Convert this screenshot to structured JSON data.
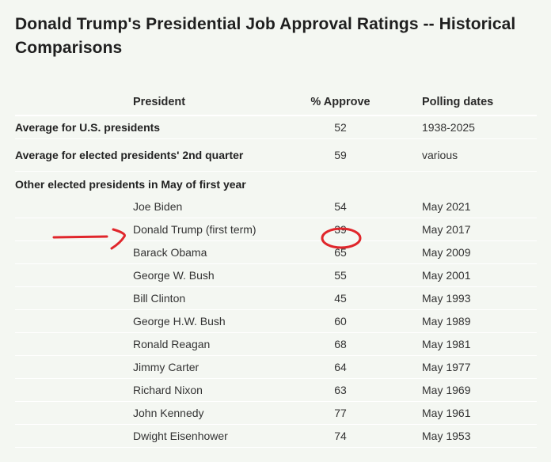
{
  "title": "Donald Trump's Presidential Job Approval Ratings -- Historical Comparisons",
  "header": {
    "president": "President",
    "approve": "% Approve",
    "dates": "Polling dates"
  },
  "summary_rows": [
    {
      "label": "Average for U.S. presidents",
      "approve": "52",
      "dates": "1938-2025"
    },
    {
      "label": "Average for elected presidents' 2nd quarter",
      "approve": "59",
      "dates": "various"
    }
  ],
  "group_label": "Other elected presidents in May of first year",
  "presidents": [
    {
      "name": "Joe Biden",
      "approve": "54",
      "dates": "May 2021"
    },
    {
      "name": "Donald Trump (first term)",
      "approve": "39",
      "dates": "May 2017"
    },
    {
      "name": "Barack Obama",
      "approve": "65",
      "dates": "May 2009"
    },
    {
      "name": "George W. Bush",
      "approve": "55",
      "dates": "May 2001"
    },
    {
      "name": "Bill Clinton",
      "approve": "45",
      "dates": "May 1993"
    },
    {
      "name": "George H.W. Bush",
      "approve": "60",
      "dates": "May 1989"
    },
    {
      "name": "Ronald Reagan",
      "approve": "68",
      "dates": "May 1981"
    },
    {
      "name": "Jimmy Carter",
      "approve": "64",
      "dates": "May 1977"
    },
    {
      "name": "Richard Nixon",
      "approve": "63",
      "dates": "May 1969"
    },
    {
      "name": "John Kennedy",
      "approve": "77",
      "dates": "May 1961"
    },
    {
      "name": "Dwight Eisenhower",
      "approve": "74",
      "dates": "May 1953"
    }
  ],
  "annotation_color": "#e0262b"
}
